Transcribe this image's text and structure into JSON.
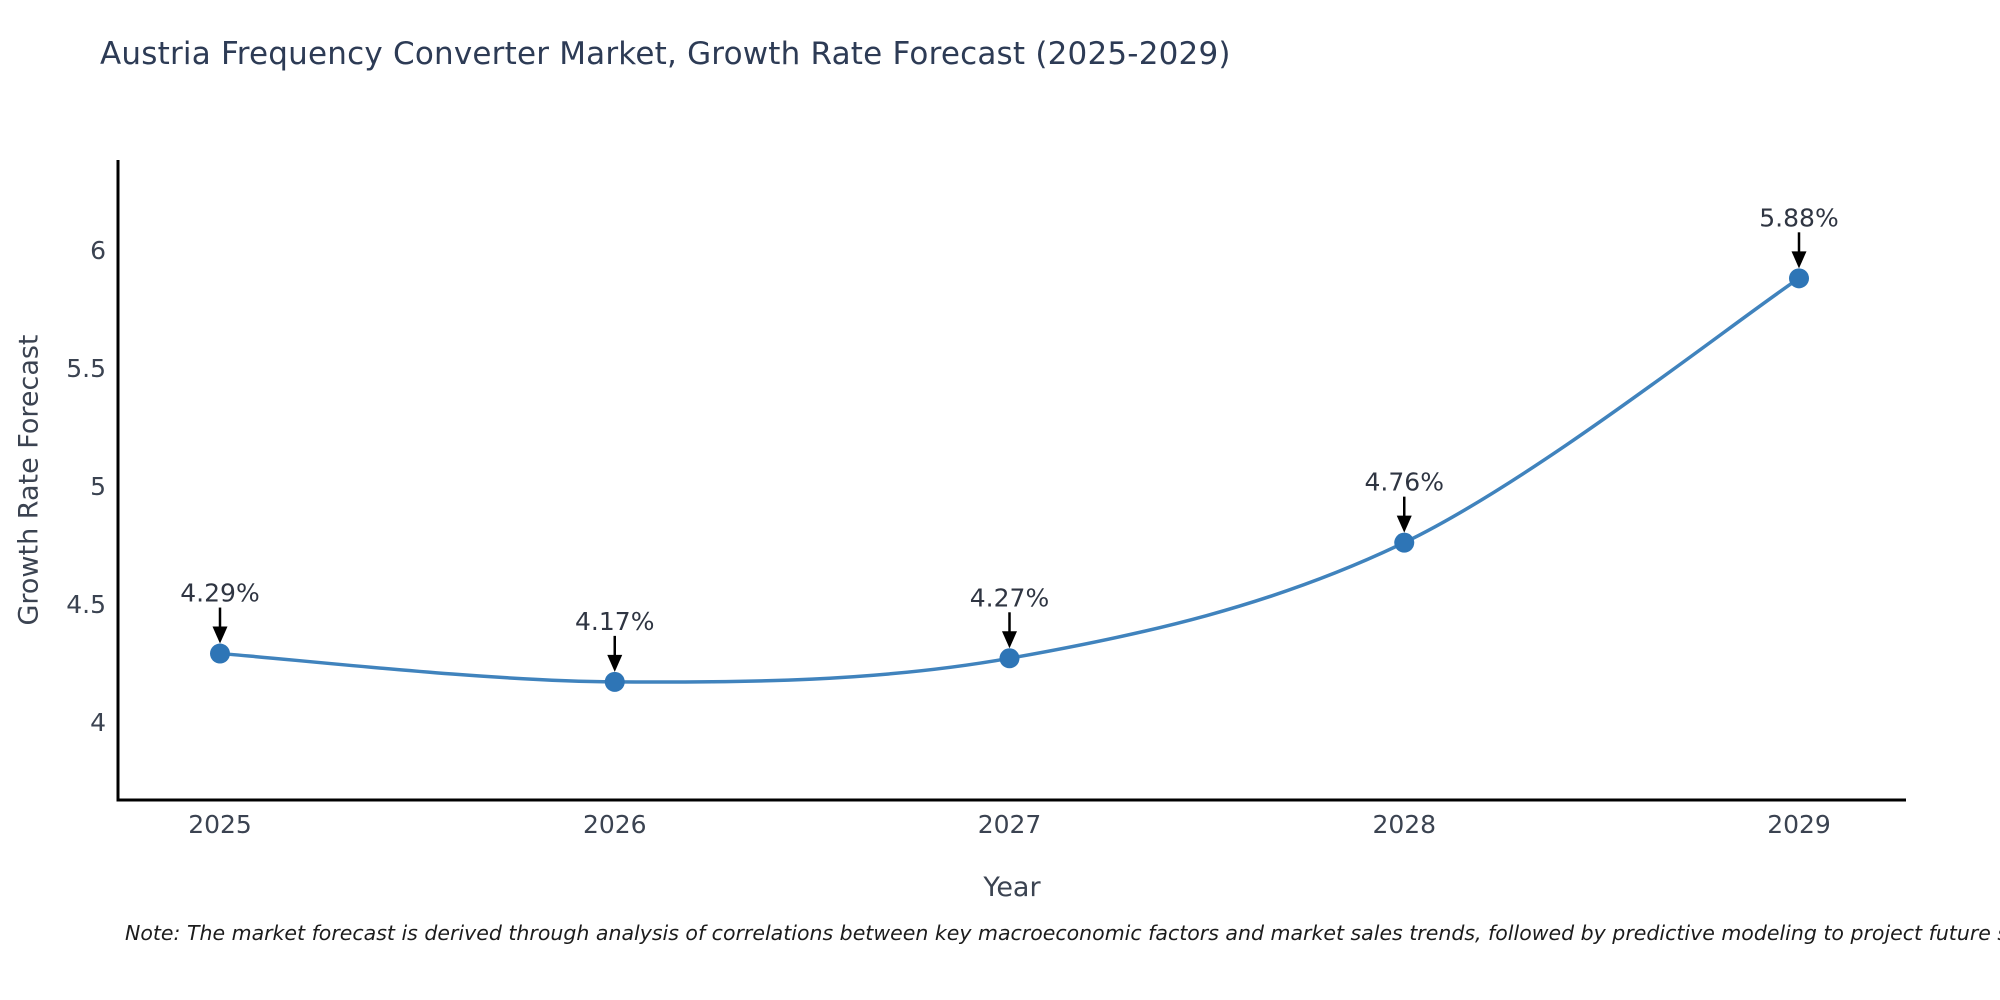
{
  "title": "Austria Frequency Converter Market, Growth Rate Forecast (2025-2029)",
  "note": "Note: The market forecast is derived through analysis of correlations between key macroeconomic factors and market sales trends, followed by predictive modeling to project future sales",
  "chart_data": {
    "type": "line",
    "title": "Austria Frequency Converter Market, Growth Rate Forecast (2025-2029)",
    "xlabel": "Year",
    "ylabel": "Growth Rate Forecast",
    "categories": [
      "2025",
      "2026",
      "2027",
      "2028",
      "2029"
    ],
    "values": [
      4.29,
      4.17,
      4.27,
      4.76,
      5.88
    ],
    "point_labels": [
      "4.29%",
      "4.17%",
      "4.27%",
      "4.76%",
      "5.88%"
    ],
    "yticks": [
      4,
      4.5,
      5,
      5.5,
      6
    ],
    "ytick_labels": [
      "4",
      "4.5",
      "5",
      "5.5",
      "6"
    ],
    "ylim": [
      3.67,
      6.42
    ],
    "grid": false,
    "legend_position": "none",
    "colors": {
      "line": "#4083bd",
      "marker": "#2e75b6",
      "axis": "#000000",
      "arrow": "#000000",
      "title_text": "#2d3b55",
      "tick_text": "#3b4351",
      "point_label_text": "#2f3542"
    }
  }
}
